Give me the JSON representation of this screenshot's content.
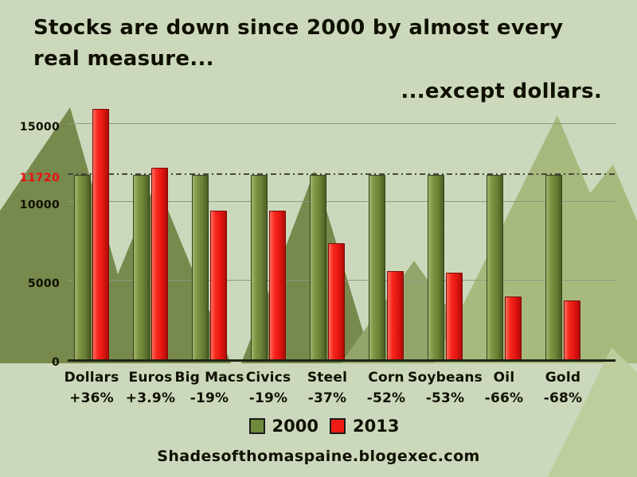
{
  "header": {
    "title_line1": "Stocks are down since 2000 by almost every",
    "title_line2": "real measure...",
    "subtitle": "...except dollars."
  },
  "footer": {
    "site": "Shadesofthomaspaine.blogexec.com"
  },
  "colors": {
    "background": "#ccd8bc",
    "bar_2000": "#6f8a3a",
    "bar_2013": "#ee1c14",
    "reference_label": "#e8100c",
    "text": "#101000"
  },
  "chart_data": {
    "type": "bar",
    "title": "Stocks are down since 2000 by almost every real measure...",
    "subtitle": "...except dollars.",
    "categories": [
      "Dollars",
      "Euros",
      "Big Macs",
      "Civics",
      "Steel",
      "Corn",
      "Soybeans",
      "Oil",
      "Gold"
    ],
    "category_change_labels": [
      "+36%",
      "+3.9%",
      "-19%",
      "-19%",
      "-37%",
      "-52%",
      "-53%",
      "-66%",
      "-68%"
    ],
    "series": [
      {
        "name": "2000",
        "color": "#6f8a3a",
        "values": [
          11720,
          11720,
          11720,
          11720,
          11720,
          11720,
          11720,
          11720,
          11720
        ]
      },
      {
        "name": "2013",
        "color": "#ee1c14",
        "values": [
          15940,
          12180,
          9490,
          9490,
          7380,
          5630,
          5510,
          3990,
          3750
        ]
      }
    ],
    "ylim": [
      0,
      16200
    ],
    "yticks": [
      {
        "value": 0,
        "label": "0"
      },
      {
        "value": 5000,
        "label": "5000"
      },
      {
        "value": 10000,
        "label": "10000"
      },
      {
        "value": 15000,
        "label": "15000"
      }
    ],
    "reference_line": {
      "value": 11720,
      "label": "11720",
      "label_color": "#e8100c"
    },
    "legend": [
      {
        "label": "2000",
        "color": "#6f8a3a"
      },
      {
        "label": "2013",
        "color": "#ee1c14"
      }
    ],
    "legend_position": "bottom",
    "grid": true
  }
}
